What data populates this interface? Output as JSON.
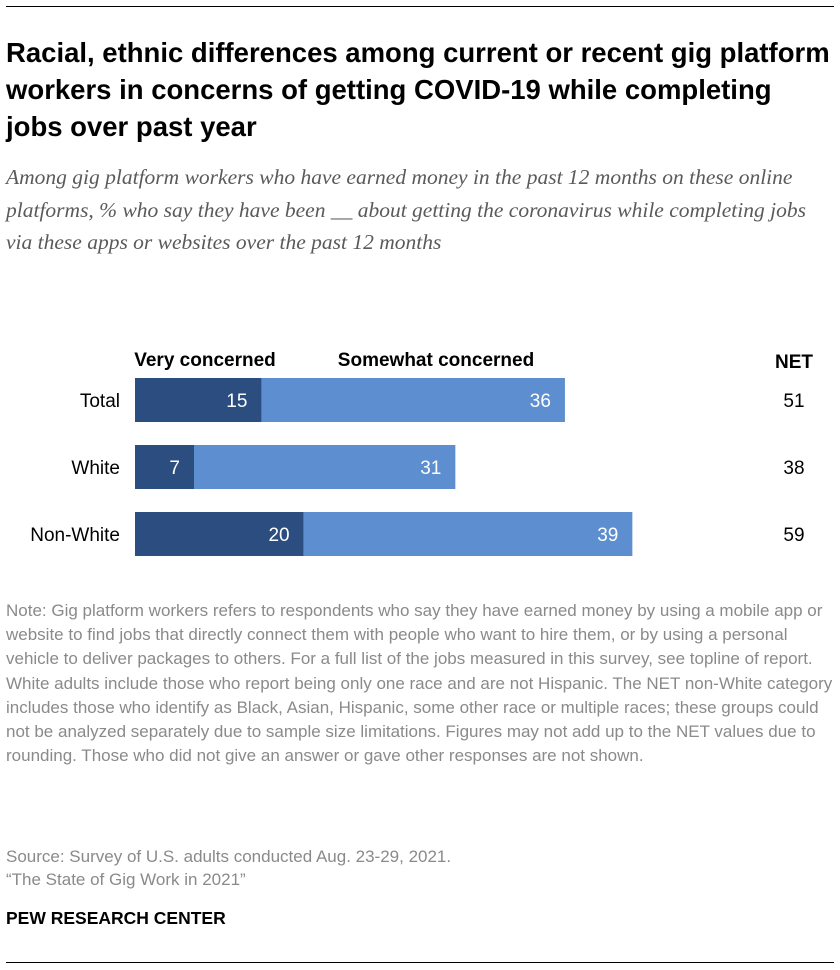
{
  "title": "Racial, ethnic differences among current or recent gig platform workers in concerns of getting COVID-19 while completing jobs over past year",
  "subtitle": "Among gig platform workers who have earned money in the past 12 months on these online platforms, % who say they have been __ about getting the coronavirus while completing jobs via these apps or websites over the past 12 months",
  "note": "Note: Gig platform workers refers to respondents who say they have earned money by using a mobile app or website to find jobs that directly connect them with people who want to hire them, or by using a personal vehicle to deliver packages to others. For a full list of the jobs measured in this survey, see topline of report. White adults include those who report being only one race and are not Hispanic. The NET non-White category includes those who identify as Black, Asian, Hispanic, some other race or multiple races; these groups could not be analyzed separately due to sample size limitations. Figures may not add up to the NET values due to rounding. Those who did not give an answer or gave other responses are not shown.",
  "source": "Source: Survey of U.S. adults conducted Aug. 23-29, 2021.",
  "report": "“The State of Gig Work in 2021”",
  "brand": "PEW RESEARCH CENTER",
  "colors": {
    "very": "#2b4d80",
    "somewhat": "#5d8fd0"
  },
  "chart_data": {
    "type": "bar",
    "orientation": "horizontal",
    "stacked": true,
    "title": "Racial, ethnic differences among current or recent gig platform workers in concerns of getting COVID-19 while completing jobs over past year",
    "categories": [
      "Total",
      "White",
      "Non-White"
    ],
    "series": [
      {
        "name": "Very concerned",
        "values": [
          15,
          7,
          20
        ]
      },
      {
        "name": "Somewhat concerned",
        "values": [
          36,
          31,
          39
        ]
      }
    ],
    "net_label": "NET",
    "net": [
      51,
      38,
      59
    ],
    "xlim": [
      0,
      100
    ],
    "grid": false,
    "legend": "top"
  }
}
